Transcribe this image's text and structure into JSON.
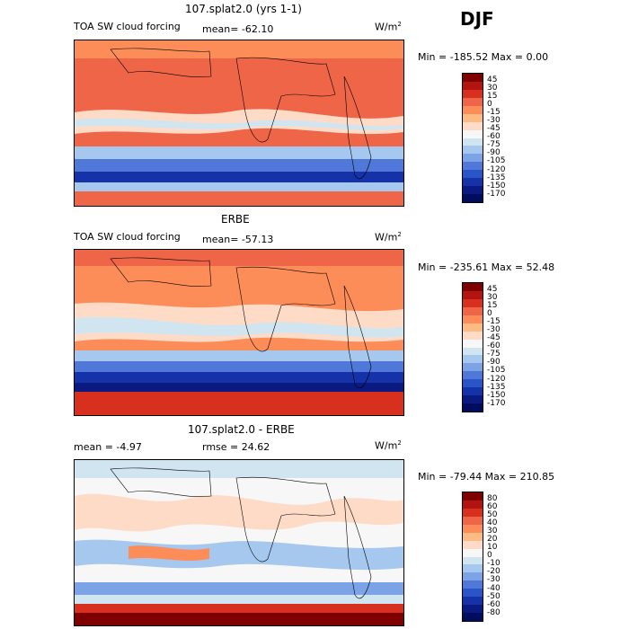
{
  "season": "DJF",
  "panels": [
    {
      "title": "107.splat2.0 (yrs 1-1)",
      "left_label": "TOA SW cloud forcing",
      "stat_label": "mean=",
      "stat_value": "-62.10",
      "units": "W/m",
      "units_exp": "2",
      "minmax": "Min = -185.52 Max =    0.00",
      "levels": [
        "45",
        "30",
        "15",
        "0",
        "-15",
        "-30",
        "-45",
        "-60",
        "-75",
        "-90",
        "-105",
        "-120",
        "-135",
        "-150",
        "-170"
      ],
      "colors": [
        "#7f0000",
        "#b2140f",
        "#d7301f",
        "#ef6548",
        "#fc8d59",
        "#fdbb84",
        "#fddbc7",
        "#f7f7f7",
        "#d1e5f0",
        "#a6c8ef",
        "#7ba3e6",
        "#4f78d9",
        "#2a55c8",
        "#1632a8",
        "#0a1a80",
        "#000c5e"
      ]
    },
    {
      "title": "ERBE",
      "left_label": "TOA SW cloud forcing",
      "stat_label": "mean=",
      "stat_value": "-57.13",
      "units": "W/m",
      "units_exp": "2",
      "minmax": "Min = -235.61 Max =  52.48",
      "levels": [
        "45",
        "30",
        "15",
        "0",
        "-15",
        "-30",
        "-45",
        "-60",
        "-75",
        "-90",
        "-105",
        "-120",
        "-135",
        "-150",
        "-170"
      ],
      "colors": [
        "#7f0000",
        "#b2140f",
        "#d7301f",
        "#ef6548",
        "#fc8d59",
        "#fdbb84",
        "#fddbc7",
        "#f7f7f7",
        "#d1e5f0",
        "#a6c8ef",
        "#7ba3e6",
        "#4f78d9",
        "#2a55c8",
        "#1632a8",
        "#0a1a80",
        "#000c5e"
      ]
    },
    {
      "title": "107.splat2.0 - ERBE",
      "left_label": "mean =   -4.97",
      "stat_label": "rmse =",
      "stat_value": "24.62",
      "units": "W/m",
      "units_exp": "2",
      "minmax": "Min = -79.44 Max = 210.85",
      "levels": [
        "80",
        "60",
        "50",
        "40",
        "30",
        "20",
        "10",
        "0",
        "-10",
        "-20",
        "-30",
        "-40",
        "-50",
        "-60",
        "-80"
      ],
      "colors": [
        "#7f0000",
        "#b2140f",
        "#d7301f",
        "#ef6548",
        "#fc8d59",
        "#fdbb84",
        "#fddbc7",
        "#f7f7f7",
        "#d1e5f0",
        "#a6c8ef",
        "#7ba3e6",
        "#4f78d9",
        "#2a55c8",
        "#1632a8",
        "#0a1a80",
        "#000c5e"
      ]
    }
  ]
}
